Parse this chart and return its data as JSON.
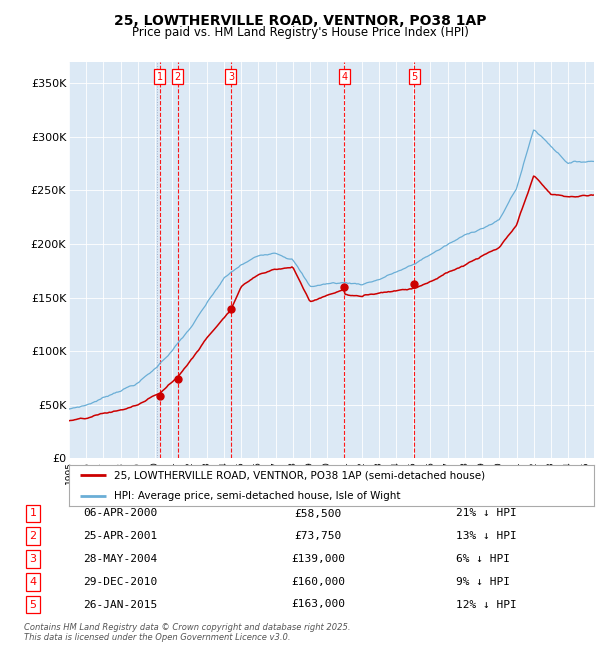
{
  "title": "25, LOWTHERVILLE ROAD, VENTNOR, PO38 1AP",
  "subtitle": "Price paid vs. HM Land Registry's House Price Index (HPI)",
  "bg_color": "#dce9f5",
  "hpi_color": "#6aaed6",
  "price_color": "#cc0000",
  "ylim": [
    0,
    370000
  ],
  "yticks": [
    0,
    50000,
    100000,
    150000,
    200000,
    250000,
    300000,
    350000
  ],
  "legend_text_price": "25, LOWTHERVILLE ROAD, VENTNOR, PO38 1AP (semi-detached house)",
  "legend_text_hpi": "HPI: Average price, semi-detached house, Isle of Wight",
  "footer": "Contains HM Land Registry data © Crown copyright and database right 2025.\nThis data is licensed under the Open Government Licence v3.0.",
  "sales": [
    {
      "num": 1,
      "date": "06-APR-2000",
      "date_x": 2000.27,
      "price": 58500,
      "pct": "21%",
      "dir": "↓"
    },
    {
      "num": 2,
      "date": "25-APR-2001",
      "date_x": 2001.32,
      "price": 73750,
      "pct": "13%",
      "dir": "↓"
    },
    {
      "num": 3,
      "date": "28-MAY-2004",
      "date_x": 2004.41,
      "price": 139000,
      "pct": "6%",
      "dir": "↓"
    },
    {
      "num": 4,
      "date": "29-DEC-2010",
      "date_x": 2010.99,
      "price": 160000,
      "pct": "9%",
      "dir": "↓"
    },
    {
      "num": 5,
      "date": "26-JAN-2015",
      "date_x": 2015.07,
      "price": 163000,
      "pct": "12%",
      "dir": "↓"
    }
  ],
  "xmin": 1995.0,
  "xmax": 2025.5,
  "hpi_anchors_t": [
    1995,
    1996,
    1997,
    1998,
    1999,
    2000,
    2001,
    2002,
    2003,
    2004,
    2005,
    2006,
    2007,
    2008,
    2009,
    2010,
    2011,
    2012,
    2013,
    2014,
    2015,
    2016,
    2017,
    2018,
    2019,
    2020,
    2021,
    2022,
    2023,
    2024,
    2025.5
  ],
  "hpi_anchors_v": [
    46000,
    50000,
    57000,
    65000,
    72000,
    85000,
    103000,
    122000,
    145000,
    168000,
    180000,
    188000,
    193000,
    188000,
    162000,
    165000,
    166000,
    165000,
    170000,
    177000,
    183000,
    193000,
    202000,
    210000,
    218000,
    225000,
    255000,
    310000,
    295000,
    280000,
    282000
  ],
  "price_anchors_t": [
    1995,
    1996,
    1997,
    1998,
    1999,
    2000.27,
    2001.32,
    2002,
    2003,
    2004.41,
    2005,
    2006,
    2007,
    2008,
    2009,
    2010.99,
    2011,
    2012,
    2013,
    2014,
    2015.07,
    2016,
    2017,
    2018,
    2019,
    2020,
    2021,
    2022,
    2023,
    2024,
    2025.5
  ],
  "price_anchors_v": [
    35000,
    36000,
    40000,
    43000,
    48000,
    58500,
    73750,
    88000,
    110000,
    139000,
    160000,
    172000,
    178000,
    180000,
    148000,
    160000,
    155000,
    153000,
    157000,
    160000,
    163000,
    170000,
    178000,
    185000,
    193000,
    200000,
    220000,
    265000,
    248000,
    245000,
    247000
  ]
}
